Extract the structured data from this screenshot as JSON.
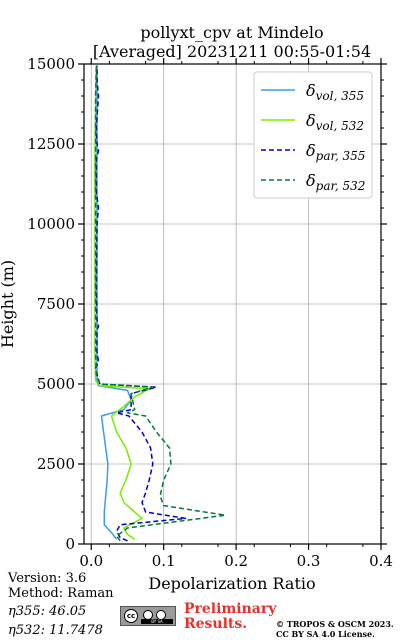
{
  "chart_data": {
    "type": "line",
    "title": "pollyxt_cpv at Mindelo",
    "subtitle": "[Averaged] 20231211 00:55-01:54",
    "xlabel": "Depolarization Ratio",
    "ylabel": "Height (m)",
    "xlim": [
      -0.01,
      0.4
    ],
    "ylim": [
      0,
      15000
    ],
    "xticks": [
      0.0,
      0.1,
      0.2,
      0.3,
      0.4
    ],
    "xtick_labels": [
      "0.0",
      "0.1",
      "0.2",
      "0.3",
      "0.4"
    ],
    "yticks": [
      0,
      2500,
      5000,
      7500,
      10000,
      12500,
      15000
    ],
    "ytick_labels": [
      "0",
      "2500",
      "5000",
      "7500",
      "10000",
      "12500",
      "15000"
    ],
    "grid": true,
    "legend_position": "top-right",
    "series": [
      {
        "name": "δvol,355",
        "color": "#3b9cf0",
        "style": "solid",
        "points": [
          [
            0.035,
            150
          ],
          [
            0.03,
            300
          ],
          [
            0.018,
            600
          ],
          [
            0.018,
            1000
          ],
          [
            0.02,
            1500
          ],
          [
            0.022,
            2000
          ],
          [
            0.023,
            2500
          ],
          [
            0.02,
            3000
          ],
          [
            0.017,
            3500
          ],
          [
            0.014,
            4000
          ],
          [
            0.045,
            4200
          ],
          [
            0.055,
            4500
          ],
          [
            0.05,
            4800
          ],
          [
            0.01,
            4950
          ],
          [
            0.008,
            5100
          ],
          [
            0.008,
            6000
          ],
          [
            0.008,
            8000
          ],
          [
            0.008,
            10000
          ],
          [
            0.008,
            12000
          ],
          [
            0.008,
            14000
          ],
          [
            0.008,
            14950
          ]
        ]
      },
      {
        "name": "δvol,532",
        "color": "#76ee00",
        "style": "solid",
        "points": [
          [
            0.06,
            150
          ],
          [
            0.05,
            300
          ],
          [
            0.045,
            500
          ],
          [
            0.07,
            800
          ],
          [
            0.045,
            1300
          ],
          [
            0.04,
            1600
          ],
          [
            0.048,
            2000
          ],
          [
            0.055,
            2500
          ],
          [
            0.048,
            3000
          ],
          [
            0.035,
            3500
          ],
          [
            0.028,
            4000
          ],
          [
            0.045,
            4300
          ],
          [
            0.06,
            4600
          ],
          [
            0.08,
            4850
          ],
          [
            0.012,
            4950
          ],
          [
            0.006,
            5100
          ],
          [
            0.005,
            6000
          ],
          [
            0.005,
            8000
          ],
          [
            0.005,
            10000
          ],
          [
            0.005,
            12000
          ],
          [
            0.006,
            14000
          ],
          [
            0.007,
            14950
          ]
        ]
      },
      {
        "name": "δpar,355",
        "color": "#0000cc",
        "style": "dashed",
        "points": [
          [
            0.05,
            100
          ],
          [
            0.04,
            200
          ],
          [
            0.035,
            400
          ],
          [
            0.04,
            600
          ],
          [
            0.13,
            800
          ],
          [
            0.075,
            1000
          ],
          [
            0.07,
            1300
          ],
          [
            0.075,
            1600
          ],
          [
            0.08,
            2000
          ],
          [
            0.085,
            2500
          ],
          [
            0.082,
            3000
          ],
          [
            0.07,
            3500
          ],
          [
            0.052,
            4000
          ],
          [
            0.035,
            4100
          ],
          [
            0.055,
            4200
          ],
          [
            0.055,
            4700
          ],
          [
            0.09,
            4900
          ],
          [
            0.012,
            5000
          ],
          [
            0.008,
            5300
          ],
          [
            0.006,
            5500
          ],
          [
            0.01,
            5700
          ],
          [
            0.008,
            6000
          ],
          [
            0.008,
            6700
          ],
          [
            0.01,
            6800
          ],
          [
            0.008,
            7000
          ],
          [
            0.007,
            8000
          ],
          [
            0.008,
            10000
          ],
          [
            0.01,
            10500
          ],
          [
            0.007,
            11000
          ],
          [
            0.007,
            12000
          ],
          [
            0.01,
            12300
          ],
          [
            0.008,
            12500
          ],
          [
            0.007,
            13000
          ],
          [
            0.01,
            14000
          ],
          [
            0.008,
            14500
          ],
          [
            0.008,
            14950
          ]
        ]
      },
      {
        "name": "δpar,532",
        "color": "#007a33",
        "style": "dashed",
        "points": [
          [
            0.04,
            100
          ],
          [
            0.035,
            250
          ],
          [
            0.05,
            500
          ],
          [
            0.185,
            900
          ],
          [
            0.1,
            1200
          ],
          [
            0.095,
            1500
          ],
          [
            0.1,
            2000
          ],
          [
            0.11,
            2500
          ],
          [
            0.108,
            3000
          ],
          [
            0.09,
            3500
          ],
          [
            0.075,
            4000
          ],
          [
            0.05,
            4100
          ],
          [
            0.06,
            4200
          ],
          [
            0.055,
            4700
          ],
          [
            0.085,
            4900
          ],
          [
            0.012,
            5000
          ],
          [
            0.007,
            5300
          ],
          [
            0.006,
            6000
          ],
          [
            0.006,
            8000
          ],
          [
            0.006,
            10000
          ],
          [
            0.006,
            12000
          ],
          [
            0.006,
            14000
          ],
          [
            0.007,
            14950
          ]
        ]
      }
    ],
    "legend": [
      {
        "base": "δ",
        "sub": "vol, 355"
      },
      {
        "base": "δ",
        "sub": "vol, 532"
      },
      {
        "base": "δ",
        "sub": "par, 355"
      },
      {
        "base": "δ",
        "sub": "par, 532"
      }
    ]
  },
  "info": {
    "version": "Version: 3.6",
    "method": "Method: Raman",
    "eta355": "η355:  46.05",
    "eta532": "η532: 11.7478"
  },
  "footer": {
    "preliminary_line1": "Preliminary",
    "preliminary_line2": "Results.",
    "copyright_line1": "© TROPOS & OSCM 2023.",
    "copyright_line2": "CC BY SA 4.0 License.",
    "license_badge": "BY SA"
  }
}
